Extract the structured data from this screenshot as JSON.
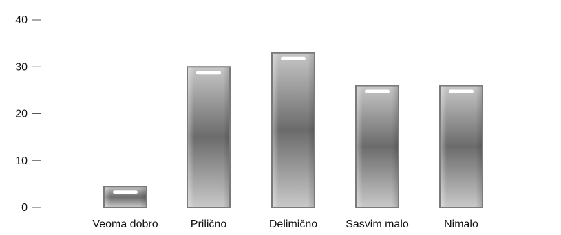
{
  "chart_data": {
    "type": "bar",
    "title": "",
    "xlabel": "",
    "ylabel": "",
    "categories": [
      "Veoma dobro",
      "Prilično",
      "Delimično",
      "Sasvim malo",
      "Nimalo"
    ],
    "values": [
      4.5,
      30,
      33,
      26,
      26
    ],
    "ylim": [
      0,
      40
    ],
    "yticks": [
      0,
      10,
      20,
      30,
      40
    ],
    "grid": false,
    "legend": "none",
    "colors": {
      "bar_edge": "#7a7a7a",
      "bar_light": "#c4c4c4",
      "bar_dark": "#6e6e6e",
      "highlight": "#ffffff",
      "axis": "#555555"
    }
  }
}
